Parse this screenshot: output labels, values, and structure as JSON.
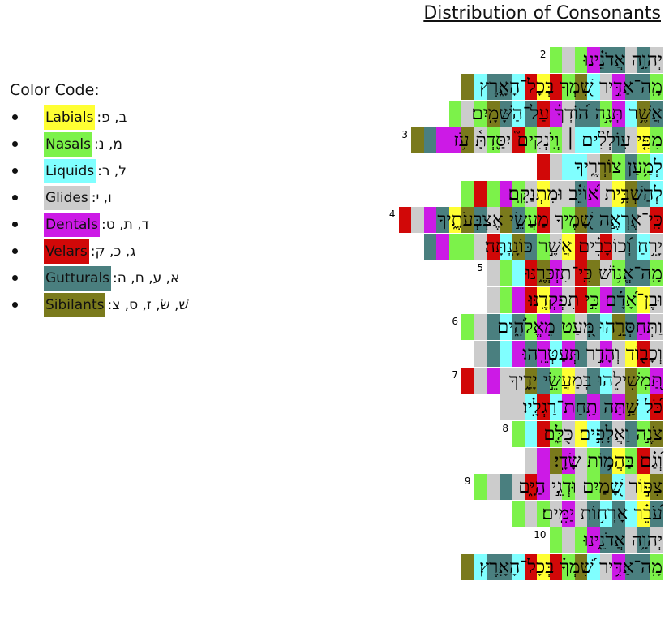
{
  "title": "Distribution of Consonants",
  "legend": {
    "heading": "Color Code:",
    "items": [
      {
        "label": "Labials",
        "letters": ":ב, פ",
        "color": "#ffff33"
      },
      {
        "label": "Nasals",
        "letters": ":מ, נ",
        "color": "#7cf24a"
      },
      {
        "label": "Liquids",
        "letters": ":ל, ר",
        "color": "#80ffff"
      },
      {
        "label": "Glides",
        "letters": ":ו, י",
        "color": "#cccccc"
      },
      {
        "label": "Dentals",
        "letters": ":ד, ת, ט",
        "color": "#cc1ae6"
      },
      {
        "label": "Velars",
        "letters": ":ג, כ, ק",
        "color": "#d10808"
      },
      {
        "label": "Gutturals",
        "letters": ":א, ע, ח, ה",
        "color": "#4a7f7f"
      },
      {
        "label": "Sibilants",
        "letters": ":שׁ, שׂ, ז, ס, צ",
        "color": "#7a7a1c"
      }
    ]
  },
  "palette": {
    "L": "#ffff33",
    "N": "#7cf24a",
    "Q": "#80ffff",
    "G": "#cccccc",
    "D": "#cc1ae6",
    "V": "#d10808",
    "U": "#4a7f7f",
    "S": "#7a7a1c"
  },
  "poem": [
    {
      "verse": "2",
      "text": "יְהוָ֣ה אֲדֹנֵ֗ינוּ",
      "colors": "GUGUUDNGN"
    },
    {
      "verse": "",
      "text": "מָֽה־אַדִּ֣יר שִׁ֭מְךָ בְּכָל־הָאָ֑רֶץ",
      "colors": "NUUDGQSNVLVQUUQS"
    },
    {
      "verse": "",
      "text": "אֲשֶׁ֥ר תְּנָ֥ה ה֝וֹדְךָ֗ עַל־הַשָּׁמָֽיִם׃",
      "colors": "USQDNUUGDVUQUSNGN"
    },
    {
      "verse": "3",
      "text": "מִפִּ֤י עֽוֹלְלִ֨ים ׀ וְֽיֹנְקִים֮ יִסַּ֪דְתָּ֫ עֹ֥ז",
      "colors": "NLGUGQQGNGNVGNGSDDUS"
    },
    {
      "verse": "",
      "text": "לְמַ֥עַן צוֹרְרֶ֑יךָ",
      "colors": "QNUNSGQQGV"
    },
    {
      "verse": "",
      "text": "לְהַשְׁבִּ֥ית א֝וֹיֵ֗ב וּמִתְנַקֵּֽם׃",
      "colors": "QUSLGDUGGLGNDNVN"
    },
    {
      "verse": "4",
      "text": "כִּֽי־אֶרְאֶ֣ה שָׁ֭מֶיךָ מַעֲשֵׂ֣י אֶצְבְּעֹתֶ֑יךָ",
      "colors": "VGUQUUSNGVNUSGUSLUDGV"
    },
    {
      "verse": "",
      "text": "יָרֵ֥חַ וְ֝כוֹכָבִ֗ים אֲשֶׁ֣ר כּוֹנָֽנְתָּה׃",
      "colors": "GQUGVGVLGNUSQVGNNDU"
    },
    {
      "verse": "5",
      "text": "מָֽה־אֱנ֥וֹשׁ כִּֽי־תִזְכְּרֶ֑נּוּ",
      "colors": "NUUNGSVGDSVQNG"
    },
    {
      "verse": "",
      "text": "וּבֶן־אָ֝דָ֗ם כִּ֣י תִפְקְדֶֽנּוּ׃",
      "colors": "GLNUDNVGDLVDNG"
    },
    {
      "verse": "6",
      "text": "וַתְּחַסְּרֵ֣הוּ מְּ֭עַט מֵאֱלֹהִ֑ים",
      "colors": "GDUSQUGNUDNUQUGN"
    },
    {
      "verse": "",
      "text": "וְכָב֖וֹד וְהָדָ֣ר תְּעַטְּרֵֽהוּ׃",
      "colors": "GVLGDGUDQDUDQUG"
    },
    {
      "verse": "7",
      "text": "תַּ֭מְשִׁילֵהוּ בְּמַעֲשֵׂ֣י יָדֶ֑יךָ",
      "colors": "DNSGQUGLNUSGGDGV"
    },
    {
      "verse": "",
      "text": "כֹּ֝ל שַׁ֣תָּה תַֽחַת־רַגְלָֽיו׃",
      "colors": "VQSDUDUDQVQGG"
    },
    {
      "verse": "8",
      "text": "צֹנֶ֣ה וַאֲלָפִ֣ים כֻּלָּ֑ם",
      "colors": "SNUGUQLGNVQN"
    },
    {
      "verse": "",
      "text": "וְ֝גַ֗ם בַּהֲמ֥וֹת שָׂדָֽי׃",
      "colors": "GVNLUNGDSDG"
    },
    {
      "verse": "9",
      "text": "צִפּ֣וֹר שָׁ֭מַיִם וּדְגֵ֣י הַיָּ֑ם",
      "colors": "SLGQSNGNGDVGUGN"
    },
    {
      "verse": "",
      "text": "עֹ֝בֵ֗ר אָרְח֥וֹת יַמִּֽים׃",
      "colors": "ULQUQUGDGNGN"
    },
    {
      "verse": "10",
      "text": "יְהוָ֥ה אֲדֹנֵ֑ינוּ",
      "colors": "GUGUUDNGN"
    },
    {
      "verse": "",
      "text": "מָֽה־אַדִּ֥יר שִׁ֝מְךָ֗ בְּכָל־הָאָֽרֶץ׃",
      "colors": "NUUDGQSNVLVQUUQS"
    }
  ]
}
